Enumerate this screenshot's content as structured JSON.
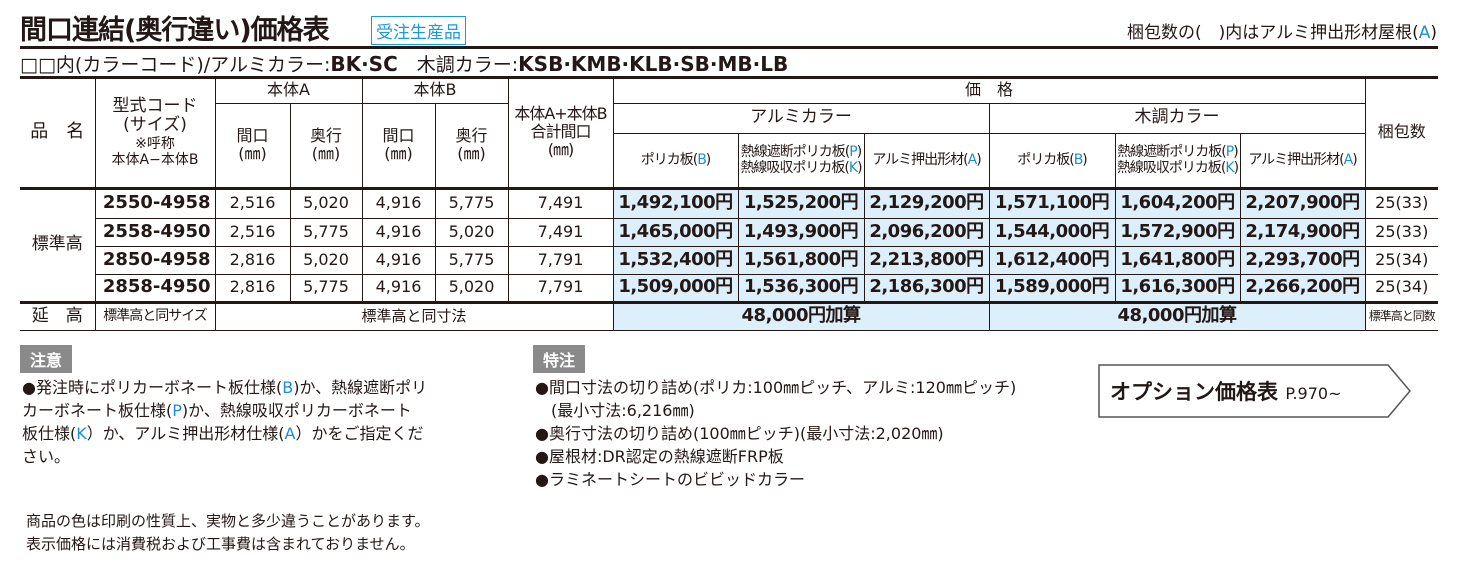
{
  "header": {
    "title": "間口連結(奥行違い)価格表",
    "badge": "受注生産品",
    "note_pre": "梱包数の(　)内はアルミ押出形材屋根(",
    "note_letter": "A",
    "note_post": ")"
  },
  "colors": {
    "prefix": "□□内(カラーコード)/アルミカラー:",
    "alumi": "BK·SC",
    "wood_label": "　木調カラー:",
    "wood": "KSB·KMB·KLB·SB·MB·LB"
  },
  "table": {
    "h": {
      "name": "品　名",
      "code": "型式コード\n(サイズ)",
      "code_note": "※呼称\n本体A−本体B",
      "bodyA": "本体A",
      "bodyB": "本体B",
      "maguchi": "間口\n(㎜)",
      "okuyuki": "奥行\n(㎜)",
      "total": "本体A+本体B\n合計間口\n(㎜)",
      "price": "価　格",
      "alumi": "アルミカラー",
      "wood": "木調カラー",
      "pack": "梱包数",
      "sub": [
        {
          "t": "ポリカ板(",
          "l": "B",
          "e": ")"
        },
        {
          "t": "熱線遮断ポリカ板(",
          "l": "P",
          "e": ")",
          "t2": "熱線吸収ポリカ板(",
          "l2": "K",
          "e2": ")"
        },
        {
          "t": "アルミ押出形材(",
          "l": "A",
          "e": ")"
        }
      ]
    },
    "group": "標準高",
    "rows": [
      {
        "code": "2550-4958",
        "a_w": "2,516",
        "a_d": "5,020",
        "b_w": "4,916",
        "b_d": "5,775",
        "total": "7,491",
        "prices": [
          "1,492,100円",
          "1,525,200円",
          "2,129,200円",
          "1,571,100円",
          "1,604,200円",
          "2,207,900円"
        ],
        "pack": "25(33)"
      },
      {
        "code": "2558-4950",
        "a_w": "2,516",
        "a_d": "5,775",
        "b_w": "4,916",
        "b_d": "5,020",
        "total": "7,491",
        "prices": [
          "1,465,000円",
          "1,493,900円",
          "2,096,200円",
          "1,544,000円",
          "1,572,900円",
          "2,174,900円"
        ],
        "pack": "25(33)"
      },
      {
        "code": "2850-4958",
        "a_w": "2,816",
        "a_d": "5,020",
        "b_w": "4,916",
        "b_d": "5,775",
        "total": "7,791",
        "prices": [
          "1,532,400円",
          "1,561,800円",
          "2,213,800円",
          "1,612,400円",
          "1,641,800円",
          "2,293,700円"
        ],
        "pack": "25(34)"
      },
      {
        "code": "2858-4950",
        "a_w": "2,816",
        "a_d": "5,775",
        "b_w": "4,916",
        "b_d": "5,020",
        "total": "7,791",
        "prices": [
          "1,509,000円",
          "1,536,300円",
          "2,186,300円",
          "1,589,000円",
          "1,616,300円",
          "2,266,200円"
        ],
        "pack": "25(34)"
      }
    ],
    "ext": {
      "name": "延　高",
      "code": "標準高と同サイズ",
      "dims": "標準高と同寸法",
      "alumi": "48,000円加算",
      "wood": "48,000円加算",
      "pack": "標準高と同数"
    }
  },
  "caution": {
    "tag": "注意",
    "text": [
      "●発注時にポリカーボネート板仕様(",
      "B",
      ")か、熱線遮断ポリ",
      "カーボネート板仕様(",
      "P",
      ")か、熱線吸収ポリカーボネート",
      "板仕様(",
      "K",
      "）か、アルミ押出形材仕様(",
      "A",
      "）かをご指定くだ",
      "さい。"
    ]
  },
  "special": {
    "tag": "特注",
    "items": [
      "●間口寸法の切り詰め(ポリカ:100㎜ピッチ、アルミ:120㎜ピッチ)",
      "　(最小寸法:6,216㎜)",
      "●奥行寸法の切り詰め(100㎜ピッチ)(最小寸法:2,020㎜)",
      "●屋根材:DR認定の熱線遮断FRP板",
      "●ラミネートシートのビビッドカラー"
    ]
  },
  "footnotes": [
    "商品の色は印刷の性質上、実物と多少違うことがあります。",
    "表示価格には消費税および工事費は含まれておりません。"
  ],
  "option": {
    "label": "オプション価格表",
    "page": "P.970~"
  },
  "accent": "#1a8fd0",
  "highlight": "#ddeffa"
}
